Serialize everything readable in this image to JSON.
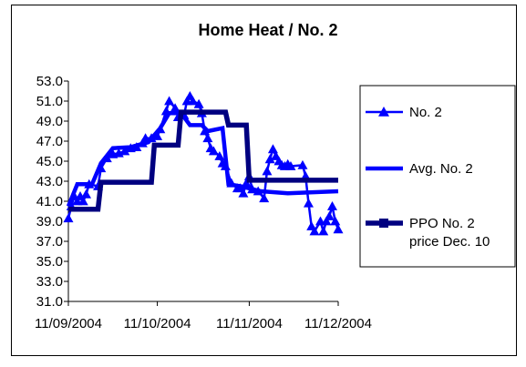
{
  "chart_data": {
    "type": "line",
    "title": "Home Heat / No. 2",
    "xlabel": "",
    "ylabel": "",
    "ylim": [
      31.0,
      53.0
    ],
    "yticks": [
      "53.0",
      "51.0",
      "49.0",
      "47.0",
      "45.0",
      "43.0",
      "41.0",
      "39.0",
      "37.0",
      "35.0",
      "33.0",
      "31.0"
    ],
    "xlim": [
      "2004-09-11",
      "2004-12-11"
    ],
    "xticks": [
      {
        "date": "2004-09-11",
        "label": "11/09/2004"
      },
      {
        "date": "2004-10-11",
        "label": "11/10/2004"
      },
      {
        "date": "2004-11-11",
        "label": "11/11/2004"
      },
      {
        "date": "2004-12-11",
        "label": "11/12/2004"
      }
    ],
    "grid": false,
    "legend_position": "right",
    "colors": {
      "no2": "#0000ff",
      "avg": "#0000ff",
      "ppo": "#000080"
    },
    "series": [
      {
        "name": "No. 2",
        "marker": "triangle",
        "points": [
          [
            "2004-09-11",
            39.3
          ],
          [
            "2004-09-12",
            40.5
          ],
          [
            "2004-09-13",
            41.5
          ],
          [
            "2004-09-14",
            41.0
          ],
          [
            "2004-09-15",
            41.5
          ],
          [
            "2004-09-16",
            41.0
          ],
          [
            "2004-09-17",
            41.7
          ],
          [
            "2004-09-18",
            42.7
          ],
          [
            "2004-09-21",
            42.5
          ],
          [
            "2004-09-22",
            44.3
          ],
          [
            "2004-09-24",
            45.3
          ],
          [
            "2004-09-26",
            45.7
          ],
          [
            "2004-09-28",
            45.8
          ],
          [
            "2004-09-30",
            46.0
          ],
          [
            "2004-10-02",
            46.3
          ],
          [
            "2004-10-04",
            46.4
          ],
          [
            "2004-10-06",
            46.8
          ],
          [
            "2004-10-07",
            47.3
          ],
          [
            "2004-10-09",
            47.3
          ],
          [
            "2004-10-11",
            47.5
          ],
          [
            "2004-10-12",
            48.2
          ],
          [
            "2004-10-14",
            50.0
          ],
          [
            "2004-10-15",
            51.0
          ],
          [
            "2004-10-17",
            50.3
          ],
          [
            "2004-10-18",
            49.4
          ],
          [
            "2004-10-20",
            49.6
          ],
          [
            "2004-10-21",
            51.0
          ],
          [
            "2004-10-22",
            51.5
          ],
          [
            "2004-10-23",
            51.0
          ],
          [
            "2004-10-25",
            50.7
          ],
          [
            "2004-10-26",
            49.8
          ],
          [
            "2004-10-27",
            48.0
          ],
          [
            "2004-10-28",
            47.3
          ],
          [
            "2004-10-29",
            46.3
          ],
          [
            "2004-10-30",
            46.0
          ],
          [
            "2004-11-01",
            45.5
          ],
          [
            "2004-11-02",
            44.8
          ],
          [
            "2004-11-03",
            44.5
          ],
          [
            "2004-11-05",
            42.8
          ],
          [
            "2004-11-07",
            42.3
          ],
          [
            "2004-11-08",
            42.3
          ],
          [
            "2004-11-09",
            41.8
          ],
          [
            "2004-11-10",
            42.8
          ],
          [
            "2004-11-11",
            43.5
          ],
          [
            "2004-11-12",
            42.2
          ],
          [
            "2004-11-14",
            42.0
          ],
          [
            "2004-11-16",
            41.3
          ],
          [
            "2004-11-17",
            44.0
          ],
          [
            "2004-11-18",
            45.2
          ],
          [
            "2004-11-19",
            46.2
          ],
          [
            "2004-11-20",
            45.5
          ],
          [
            "2004-11-21",
            45.0
          ],
          [
            "2004-11-22",
            44.6
          ],
          [
            "2004-11-23",
            44.5
          ],
          [
            "2004-11-24",
            44.7
          ],
          [
            "2004-11-25",
            44.5
          ],
          [
            "2004-11-29",
            44.6
          ],
          [
            "2004-11-30",
            43.5
          ],
          [
            "2004-12-01",
            40.8
          ],
          [
            "2004-12-02",
            38.5
          ],
          [
            "2004-12-03",
            38.0
          ],
          [
            "2004-12-05",
            39.0
          ],
          [
            "2004-12-06",
            38.0
          ],
          [
            "2004-12-07",
            39.0
          ],
          [
            "2004-12-08",
            39.5
          ],
          [
            "2004-12-09",
            40.5
          ],
          [
            "2004-12-10",
            39.0
          ],
          [
            "2004-12-11",
            38.2
          ]
        ]
      },
      {
        "name": "Avg. No. 2",
        "marker": "dash",
        "points": [
          [
            "2004-09-11",
            40.5
          ],
          [
            "2004-09-14",
            42.7
          ],
          [
            "2004-09-19",
            42.7
          ],
          [
            "2004-09-22",
            44.8
          ],
          [
            "2004-09-26",
            46.3
          ],
          [
            "2004-10-02",
            46.4
          ],
          [
            "2004-10-08",
            46.9
          ],
          [
            "2004-10-12",
            48.3
          ],
          [
            "2004-10-15",
            49.8
          ],
          [
            "2004-10-19",
            49.8
          ],
          [
            "2004-10-22",
            48.6
          ],
          [
            "2004-10-26",
            48.6
          ],
          [
            "2004-10-28",
            48.0
          ],
          [
            "2004-11-02",
            48.3
          ],
          [
            "2004-11-04",
            42.7
          ],
          [
            "2004-11-08",
            42.5
          ],
          [
            "2004-11-15",
            42.0
          ],
          [
            "2004-11-24",
            41.8
          ],
          [
            "2004-12-11",
            42.0
          ]
        ]
      },
      {
        "name": "PPO No. 2 price Dec. 10",
        "marker": "square",
        "points": [
          [
            "2004-09-11",
            40.2
          ],
          [
            "2004-09-21",
            40.2
          ],
          [
            "2004-09-22",
            42.9
          ],
          [
            "2004-10-09",
            42.9
          ],
          [
            "2004-10-10",
            46.6
          ],
          [
            "2004-10-18",
            46.6
          ],
          [
            "2004-10-19",
            49.9
          ],
          [
            "2004-11-03",
            49.9
          ],
          [
            "2004-11-04",
            48.6
          ],
          [
            "2004-11-10",
            48.6
          ],
          [
            "2004-11-11",
            43.1
          ],
          [
            "2004-12-11",
            43.1
          ]
        ]
      }
    ],
    "legend": [
      {
        "series": 0,
        "lines": [
          "No. 2"
        ]
      },
      {
        "series": 1,
        "lines": [
          "Avg. No. 2"
        ]
      },
      {
        "series": 2,
        "lines": [
          "PPO No. 2",
          "price Dec. 10"
        ]
      }
    ]
  }
}
